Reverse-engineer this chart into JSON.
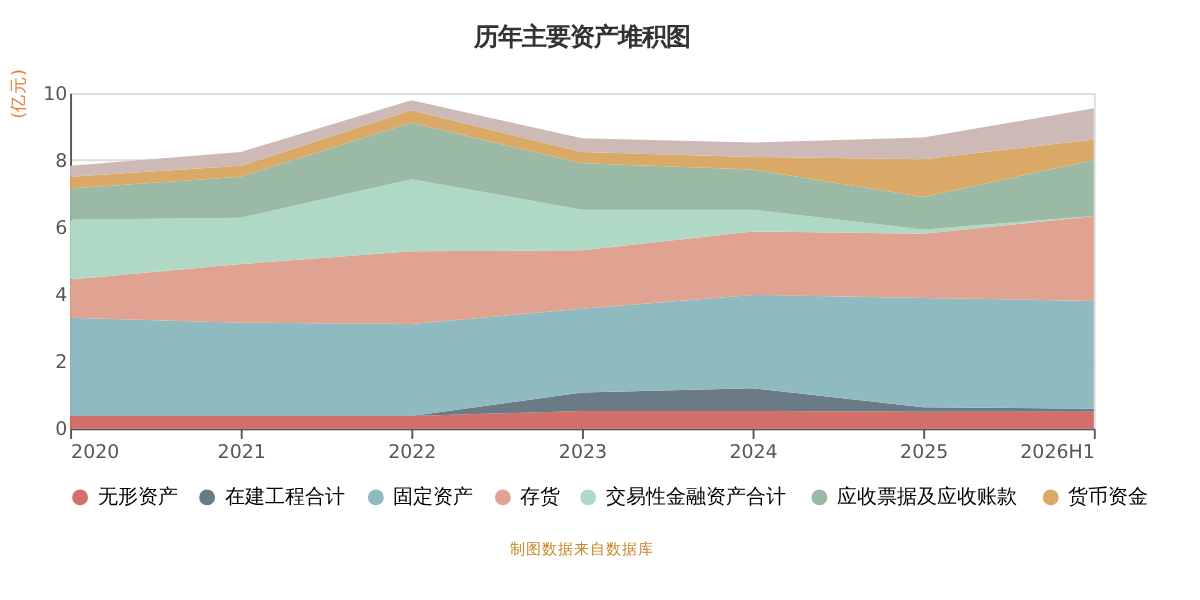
{
  "chart_data": {
    "type": "area",
    "stacked": true,
    "title": "历年主要资产堆积图",
    "ylabel": "(亿元)",
    "categories": [
      "2020",
      "2021",
      "2022",
      "2023",
      "2024",
      "2025",
      "2026H1"
    ],
    "series": [
      {
        "name": "无形资产",
        "color": "#d26f6a",
        "values": [
          0.37,
          0.37,
          0.37,
          0.52,
          0.52,
          0.5,
          0.5
        ]
      },
      {
        "name": "在建工程合计",
        "color": "#6b7b86",
        "values": [
          0,
          0,
          0,
          0.55,
          0.68,
          0.13,
          0.09
        ]
      },
      {
        "name": "固定资产",
        "color": "#8fbac0",
        "values": [
          2.93,
          2.78,
          2.74,
          2.5,
          2.78,
          3.26,
          3.21
        ]
      },
      {
        "name": "存货",
        "color": "#e1a391",
        "values": [
          1.14,
          1.75,
          2.17,
          1.74,
          1.89,
          1.91,
          2.53
        ]
      },
      {
        "name": "交易性金融资产合计",
        "color": "#b0d9c5",
        "values": [
          1.78,
          1.38,
          2.15,
          1.21,
          0.65,
          0.13,
          0
        ]
      },
      {
        "name": "应收票据及应收账款",
        "color": "#9bbaa5",
        "values": [
          0.93,
          1.22,
          1.68,
          1.38,
          1.2,
          0.97,
          1.67
        ]
      },
      {
        "name": "货币资金",
        "color": "#dba967",
        "values": [
          0.35,
          0.33,
          0.37,
          0.34,
          0.37,
          1.12,
          0.61
        ]
      },
      {
        "color": "#cdbab6",
        "values": [
          0.33,
          0.41,
          0.3,
          0.41,
          0.43,
          0.65,
          0.93
        ]
      }
    ],
    "ylim": [
      0,
      10
    ],
    "yticks": [
      0,
      2,
      4,
      6,
      8,
      10
    ],
    "grid": "y",
    "legend": "bottom",
    "annotations": [
      "制图数据来自数据库"
    ]
  }
}
